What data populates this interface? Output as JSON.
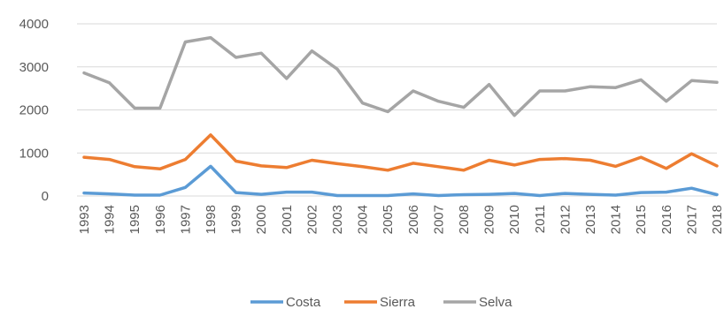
{
  "chart_data": {
    "type": "line",
    "title": "",
    "xlabel": "",
    "ylabel": "",
    "ylim": [
      0,
      4000
    ],
    "yticks": [
      0,
      1000,
      2000,
      3000,
      4000
    ],
    "ytick_labels": [
      "0",
      "1000",
      "2000",
      "3000",
      "4000"
    ],
    "grid": true,
    "legend_position": "bottom",
    "x": [
      "1993",
      "1994",
      "1995",
      "1996",
      "1997",
      "1998",
      "1999",
      "2000",
      "2001",
      "2002",
      "2003",
      "2004",
      "2005",
      "2006",
      "2007",
      "2008",
      "2009",
      "2010",
      "2011",
      "2012",
      "2013",
      "2014",
      "2015",
      "2016",
      "2017",
      "2018"
    ],
    "series": [
      {
        "name": "Costa",
        "color": "#5b9bd5",
        "values": [
          70,
          50,
          20,
          20,
          200,
          690,
          80,
          40,
          90,
          90,
          10,
          10,
          10,
          50,
          10,
          30,
          40,
          60,
          10,
          60,
          40,
          20,
          80,
          90,
          180,
          30
        ]
      },
      {
        "name": "Sierra",
        "color": "#ed7d31",
        "values": [
          900,
          850,
          680,
          630,
          850,
          1420,
          810,
          700,
          660,
          830,
          750,
          680,
          600,
          760,
          680,
          600,
          830,
          720,
          850,
          870,
          830,
          690,
          900,
          640,
          980,
          700
        ]
      },
      {
        "name": "Selva",
        "color": "#a5a5a5",
        "values": [
          2860,
          2630,
          2040,
          2040,
          3580,
          3680,
          3220,
          3320,
          2730,
          3370,
          2950,
          2160,
          1960,
          2440,
          2200,
          2060,
          2590,
          1870,
          2440,
          2440,
          2540,
          2520,
          2700,
          2200,
          2680,
          2640
        ]
      }
    ]
  }
}
